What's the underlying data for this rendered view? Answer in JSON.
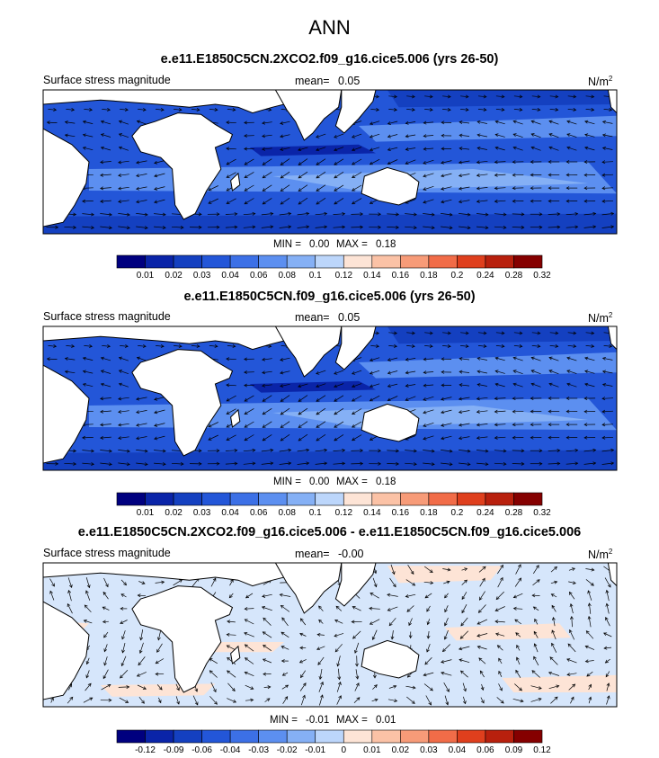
{
  "page": {
    "title": "ANN"
  },
  "panels": [
    {
      "case": "e.e11.E1850C5CN.2XCO2.f09_g16.cice5.006 (yrs 26-50)",
      "variable": "Surface stress magnitude",
      "mean_label": "mean=",
      "mean_value": "0.05",
      "units": "N/m",
      "units_exp": "2",
      "min_label": "MIN =",
      "min_value": "0.00",
      "max_label": "MAX =",
      "max_value": "0.18",
      "colorbar": [
        "0.01",
        "0.02",
        "0.03",
        "0.04",
        "0.06",
        "0.08",
        "0.1",
        "0.12",
        "0.14",
        "0.16",
        "0.18",
        "0.2",
        "0.24",
        "0.28",
        "0.32"
      ]
    },
    {
      "case": "e.e11.E1850C5CN.f09_g16.cice5.006 (yrs 26-50)",
      "variable": "Surface stress magnitude",
      "mean_label": "mean=",
      "mean_value": "0.05",
      "units": "N/m",
      "units_exp": "2",
      "min_label": "MIN =",
      "min_value": "0.00",
      "max_label": "MAX =",
      "max_value": "0.18",
      "colorbar": [
        "0.01",
        "0.02",
        "0.03",
        "0.04",
        "0.06",
        "0.08",
        "0.1",
        "0.12",
        "0.14",
        "0.16",
        "0.18",
        "0.2",
        "0.24",
        "0.28",
        "0.32"
      ]
    },
    {
      "case": "e.e11.E1850C5CN.2XCO2.f09_g16.cice5.006 - e.e11.E1850C5CN.f09_g16.cice5.006",
      "variable": "Surface stress magnitude",
      "mean_label": "mean=",
      "mean_value": "-0.00",
      "units": "N/m",
      "units_exp": "2",
      "min_label": "MIN =",
      "min_value": "-0.01",
      "max_label": "MAX =",
      "max_value": "0.01",
      "colorbar": [
        "-0.12",
        "-0.09",
        "-0.06",
        "-0.04",
        "-0.03",
        "-0.02",
        "-0.01",
        "0",
        "0.01",
        "0.02",
        "0.03",
        "0.04",
        "0.06",
        "0.09",
        "0.12"
      ]
    }
  ],
  "chart_data": [
    {
      "type": "heatmap",
      "title": "e.e11.E1850C5CN.2XCO2.f09_g16.cice5.006 (yrs 26-50)",
      "variable": "Surface stress magnitude",
      "units": "N/m2",
      "mean": 0.05,
      "min": 0.0,
      "max": 0.18,
      "levels": [
        0.01,
        0.02,
        0.03,
        0.04,
        0.06,
        0.08,
        0.1,
        0.12,
        0.14,
        0.16,
        0.18,
        0.2,
        0.24,
        0.28,
        0.32
      ],
      "colors": [
        "#00007f",
        "#0a24a8",
        "#1440c0",
        "#2356d8",
        "#3c70e6",
        "#5c8ff0",
        "#85b0f5",
        "#bcd6fb",
        "#fde4d6",
        "#fbc2a6",
        "#f79b78",
        "#f16c48",
        "#df3f1d",
        "#b8200d",
        "#850000"
      ],
      "overlay": "wind stress vectors"
    },
    {
      "type": "heatmap",
      "title": "e.e11.E1850C5CN.f09_g16.cice5.006 (yrs 26-50)",
      "variable": "Surface stress magnitude",
      "units": "N/m2",
      "mean": 0.05,
      "min": 0.0,
      "max": 0.18,
      "levels": [
        0.01,
        0.02,
        0.03,
        0.04,
        0.06,
        0.08,
        0.1,
        0.12,
        0.14,
        0.16,
        0.18,
        0.2,
        0.24,
        0.28,
        0.32
      ],
      "colors": [
        "#00007f",
        "#0a24a8",
        "#1440c0",
        "#2356d8",
        "#3c70e6",
        "#5c8ff0",
        "#85b0f5",
        "#bcd6fb",
        "#fde4d6",
        "#fbc2a6",
        "#f79b78",
        "#f16c48",
        "#df3f1d",
        "#b8200d",
        "#850000"
      ],
      "overlay": "wind stress vectors"
    },
    {
      "type": "heatmap",
      "title": "e.e11.E1850C5CN.2XCO2.f09_g16.cice5.006 - e.e11.E1850C5CN.f09_g16.cice5.006",
      "variable": "Surface stress magnitude",
      "units": "N/m2",
      "mean": -0.0,
      "min": -0.01,
      "max": 0.01,
      "levels": [
        -0.12,
        -0.09,
        -0.06,
        -0.04,
        -0.03,
        -0.02,
        -0.01,
        0,
        0.01,
        0.02,
        0.03,
        0.04,
        0.06,
        0.09,
        0.12
      ],
      "colors": [
        "#00007f",
        "#0a24a8",
        "#1440c0",
        "#2356d8",
        "#3c70e6",
        "#5c8ff0",
        "#85b0f5",
        "#bcd6fb",
        "#fde4d6",
        "#fbc2a6",
        "#f79b78",
        "#f16c48",
        "#df3f1d",
        "#b8200d",
        "#850000"
      ],
      "overlay": "wind stress difference vectors"
    }
  ]
}
